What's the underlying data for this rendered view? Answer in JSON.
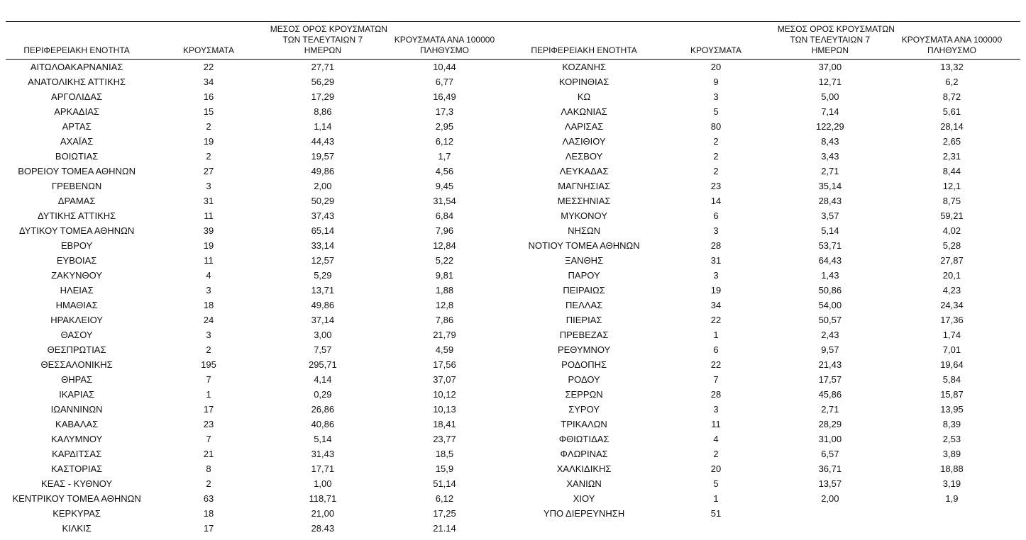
{
  "table": {
    "headers": {
      "region": "ΠΕΡΙΦΕΡΕΙΑΚΗ ΕΝΟΤΗΤΑ",
      "cases": "ΚΡΟΥΣΜΑΤΑ",
      "avg7": "ΜΕΣΟΣ ΟΡΟΣ ΚΡΟΥΣΜΑΤΩΝ\nΤΩΝ ΤΕΛΕΥΤΑΙΩΝ 7\nΗΜΕΡΩΝ",
      "per100k": "ΚΡΟΥΣΜΑΤΑ ΑΝΑ 100000\nΠΛΗΘΥΣΜΟ"
    },
    "left_rows": [
      [
        "ΑΙΤΩΛΟΑΚΑΡΝΑΝΙΑΣ",
        "22",
        "27,71",
        "10,44"
      ],
      [
        "ΑΝΑΤΟΛΙΚΗΣ ΑΤΤΙΚΗΣ",
        "34",
        "56,29",
        "6,77"
      ],
      [
        "ΑΡΓΟΛΙΔΑΣ",
        "16",
        "17,29",
        "16,49"
      ],
      [
        "ΑΡΚΑΔΙΑΣ",
        "15",
        "8,86",
        "17,3"
      ],
      [
        "ΑΡΤΑΣ",
        "2",
        "1,14",
        "2,95"
      ],
      [
        "ΑΧΑΪΑΣ",
        "19",
        "44,43",
        "6,12"
      ],
      [
        "ΒΟΙΩΤΙΑΣ",
        "2",
        "19,57",
        "1,7"
      ],
      [
        "ΒΟΡΕΙΟΥ ΤΟΜΕΑ ΑΘΗΝΩΝ",
        "27",
        "49,86",
        "4,56"
      ],
      [
        "ΓΡΕΒΕΝΩΝ",
        "3",
        "2,00",
        "9,45"
      ],
      [
        "ΔΡΑΜΑΣ",
        "31",
        "50,29",
        "31,54"
      ],
      [
        "ΔΥΤΙΚΗΣ ΑΤΤΙΚΗΣ",
        "11",
        "37,43",
        "6,84"
      ],
      [
        "ΔΥΤΙΚΟΥ ΤΟΜΕΑ ΑΘΗΝΩΝ",
        "39",
        "65,14",
        "7,96"
      ],
      [
        "ΕΒΡΟΥ",
        "19",
        "33,14",
        "12,84"
      ],
      [
        "ΕΥΒΟΙΑΣ",
        "11",
        "12,57",
        "5,22"
      ],
      [
        "ΖΑΚΥΝΘΟΥ",
        "4",
        "5,29",
        "9,81"
      ],
      [
        "ΗΛΕΙΑΣ",
        "3",
        "13,71",
        "1,88"
      ],
      [
        "ΗΜΑΘΙΑΣ",
        "18",
        "49,86",
        "12,8"
      ],
      [
        "ΗΡΑΚΛΕΙΟΥ",
        "24",
        "37,14",
        "7,86"
      ],
      [
        "ΘΑΣΟΥ",
        "3",
        "3,00",
        "21,79"
      ],
      [
        "ΘΕΣΠΡΩΤΙΑΣ",
        "2",
        "7,57",
        "4,59"
      ],
      [
        "ΘΕΣΣΑΛΟΝΙΚΗΣ",
        "195",
        "295,71",
        "17,56"
      ],
      [
        "ΘΗΡΑΣ",
        "7",
        "4,14",
        "37,07"
      ],
      [
        "ΙΚΑΡΙΑΣ",
        "1",
        "0,29",
        "10,12"
      ],
      [
        "ΙΩΑΝΝΙΝΩΝ",
        "17",
        "26,86",
        "10,13"
      ],
      [
        "ΚΑΒΑΛΑΣ",
        "23",
        "40,86",
        "18,41"
      ],
      [
        "ΚΑΛΥΜΝΟΥ",
        "7",
        "5,14",
        "23,77"
      ],
      [
        "ΚΑΡΔΙΤΣΑΣ",
        "21",
        "31,43",
        "18,5"
      ],
      [
        "ΚΑΣΤΟΡΙΑΣ",
        "8",
        "17,71",
        "15,9"
      ],
      [
        "ΚΕΑΣ - ΚΥΘΝΟΥ",
        "2",
        "1,00",
        "51,14"
      ],
      [
        "ΚΕΝΤΡΙΚΟΥ ΤΟΜΕΑ ΑΘΗΝΩΝ",
        "63",
        "118,71",
        "6,12"
      ],
      [
        "ΚΕΡΚΥΡΑΣ",
        "18",
        "21,00",
        "17,25"
      ],
      [
        "ΚΙΛΚΙΣ",
        "17",
        "28.43",
        "21.14"
      ]
    ],
    "right_rows": [
      [
        "ΚΟΖΑΝΗΣ",
        "20",
        "37,00",
        "13,32"
      ],
      [
        "ΚΟΡΙΝΘΙΑΣ",
        "9",
        "12,71",
        "6,2"
      ],
      [
        "ΚΩ",
        "3",
        "5,00",
        "8,72"
      ],
      [
        "ΛΑΚΩΝΙΑΣ",
        "5",
        "7,14",
        "5,61"
      ],
      [
        "ΛΑΡΙΣΑΣ",
        "80",
        "122,29",
        "28,14"
      ],
      [
        "ΛΑΣΙΘΙΟΥ",
        "2",
        "8,43",
        "2,65"
      ],
      [
        "ΛΕΣΒΟΥ",
        "2",
        "3,43",
        "2,31"
      ],
      [
        "ΛΕΥΚΑΔΑΣ",
        "2",
        "2,71",
        "8,44"
      ],
      [
        "ΜΑΓΝΗΣΙΑΣ",
        "23",
        "35,14",
        "12,1"
      ],
      [
        "ΜΕΣΣΗΝΙΑΣ",
        "14",
        "28,43",
        "8,75"
      ],
      [
        "ΜΥΚΟΝΟΥ",
        "6",
        "3,57",
        "59,21"
      ],
      [
        "ΝΗΣΩΝ",
        "3",
        "5,14",
        "4,02"
      ],
      [
        "ΝΟΤΙΟΥ ΤΟΜΕΑ ΑΘΗΝΩΝ",
        "28",
        "53,71",
        "5,28"
      ],
      [
        "ΞΑΝΘΗΣ",
        "31",
        "64,43",
        "27,87"
      ],
      [
        "ΠΑΡΟΥ",
        "3",
        "1,43",
        "20,1"
      ],
      [
        "ΠΕΙΡΑΙΩΣ",
        "19",
        "50,86",
        "4,23"
      ],
      [
        "ΠΕΛΛΑΣ",
        "34",
        "54,00",
        "24,34"
      ],
      [
        "ΠΙΕΡΙΑΣ",
        "22",
        "50,57",
        "17,36"
      ],
      [
        "ΠΡΕΒΕΖΑΣ",
        "1",
        "2,43",
        "1,74"
      ],
      [
        "ΡΕΘΥΜΝΟΥ",
        "6",
        "9,57",
        "7,01"
      ],
      [
        "ΡΟΔΟΠΗΣ",
        "22",
        "21,43",
        "19,64"
      ],
      [
        "ΡΟΔΟΥ",
        "7",
        "17,57",
        "5,84"
      ],
      [
        "ΣΕΡΡΩΝ",
        "28",
        "45,86",
        "15,87"
      ],
      [
        "ΣΥΡΟΥ",
        "3",
        "2,71",
        "13,95"
      ],
      [
        "ΤΡΙΚΑΛΩΝ",
        "11",
        "28,29",
        "8,39"
      ],
      [
        "ΦΘΙΩΤΙΔΑΣ",
        "4",
        "31,00",
        "2,53"
      ],
      [
        "ΦΛΩΡΙΝΑΣ",
        "2",
        "6,57",
        "3,89"
      ],
      [
        "ΧΑΛΚΙΔΙΚΗΣ",
        "20",
        "36,71",
        "18,88"
      ],
      [
        "ΧΑΝΙΩΝ",
        "5",
        "13,57",
        "3,19"
      ],
      [
        "ΧΙΟΥ",
        "1",
        "2,00",
        "1,9"
      ],
      [
        "ΥΠΟ ΔΙΕΡΕΥΝΗΣΗ",
        "51",
        "",
        ""
      ]
    ],
    "text_color": "#111111",
    "rule_color": "#000000"
  }
}
